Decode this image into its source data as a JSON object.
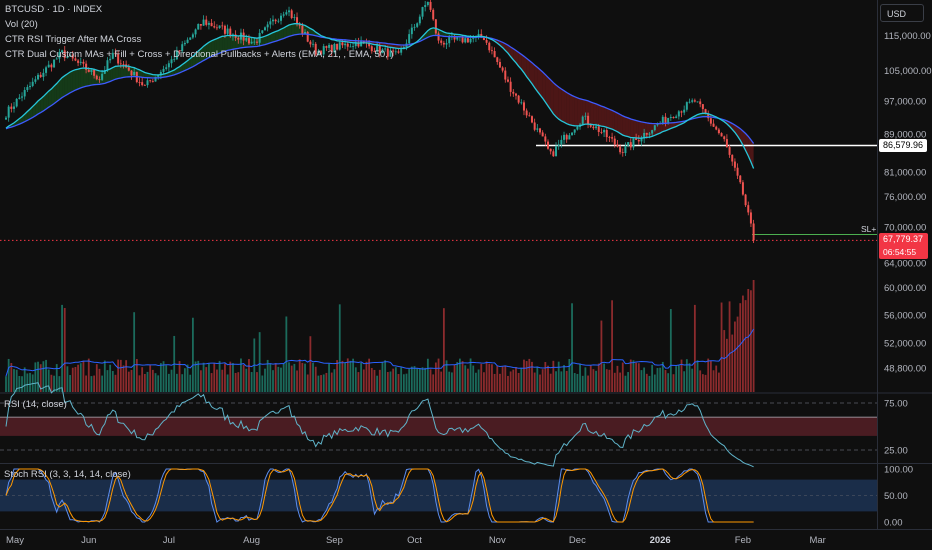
{
  "chart_data": {
    "type": "candlestick",
    "symbol_header": "BTCUSD · 1D · INDEX",
    "indicators": [
      "Vol (20)",
      "CTR RSI Trigger After MA Cross",
      "CTR Dual Custom MAs + Fill + Cross + Directional Pullbacks + Alerts (EMA, 21, , EMA, 50, )"
    ],
    "currency": "USD",
    "price_axis_ticks": [
      115000,
      105000,
      97000,
      89000,
      81000,
      76000,
      70000,
      64000,
      60000,
      56000,
      52000,
      48800
    ],
    "price_axis_labels": [
      "115,000.00",
      "105,000.00",
      "97,000.00",
      "89,000.00",
      "81,000.00",
      "76,000.00",
      "70,000.00",
      "64,000.00",
      "60,000.00",
      "56,000.00",
      "52,000.00",
      "48,800.00"
    ],
    "horizontal_level": {
      "value": 86579.96,
      "label": "86,579.96",
      "color": "#ffffff"
    },
    "last_price": {
      "value": 67779.37,
      "label": "67,779.37",
      "countdown": "06:54:55",
      "color": "#f23645"
    },
    "sl_label": "SL+",
    "time_axis_labels": [
      "May",
      "Jun",
      "Jul",
      "Aug",
      "Sep",
      "Oct",
      "Nov",
      "Dec",
      "2026",
      "Feb",
      "Mar"
    ],
    "close_anchors": [
      {
        "date": "2025-05-01",
        "close": 94000
      },
      {
        "date": "2025-05-22",
        "close": 110000
      },
      {
        "date": "2025-06-05",
        "close": 103000
      },
      {
        "date": "2025-06-10",
        "close": 109500
      },
      {
        "date": "2025-06-22",
        "close": 100800
      },
      {
        "date": "2025-07-01",
        "close": 107000
      },
      {
        "date": "2025-07-14",
        "close": 119000
      },
      {
        "date": "2025-08-02",
        "close": 113000
      },
      {
        "date": "2025-08-14",
        "close": 123000
      },
      {
        "date": "2025-08-25",
        "close": 110500
      },
      {
        "date": "2025-09-10",
        "close": 113000
      },
      {
        "date": "2025-09-25",
        "close": 109000
      },
      {
        "date": "2025-10-06",
        "close": 125000
      },
      {
        "date": "2025-10-10",
        "close": 113000
      },
      {
        "date": "2025-10-27",
        "close": 114500
      },
      {
        "date": "2025-11-05",
        "close": 101500
      },
      {
        "date": "2025-11-21",
        "close": 84500
      },
      {
        "date": "2025-12-03",
        "close": 93000
      },
      {
        "date": "2025-12-18",
        "close": 85500
      },
      {
        "date": "2026-01-05",
        "close": 93500
      },
      {
        "date": "2026-01-14",
        "close": 97000
      },
      {
        "date": "2026-01-25",
        "close": 87500
      },
      {
        "date": "2026-02-01",
        "close": 76500
      },
      {
        "date": "2026-02-05",
        "close": 67779.37
      }
    ],
    "moving_averages": [
      {
        "type": "EMA",
        "length": 21,
        "color": "#26c6da"
      },
      {
        "type": "EMA",
        "length": 50,
        "color": "#3d5afe"
      }
    ],
    "ma_fill": {
      "bullish_color": "#1b5e20",
      "bearish_color": "#7f1d1d"
    },
    "candle_colors": {
      "up": "#26a69a",
      "down": "#ef5350"
    },
    "rsi_pane": {
      "title": "RSI (14, close)",
      "axis_labels": [
        "75.00",
        "25.00"
      ],
      "overbought": 75,
      "oversold": 25,
      "band_upper": 60,
      "band_lower": 40,
      "band_color": "#4a1c22",
      "line_color": "#5fb3c9"
    },
    "stoch_pane": {
      "title": "Stoch RSI (3, 3, 14, 14, close)",
      "axis_labels": [
        "100.00",
        "50.00",
        "0.00"
      ],
      "band_color": "#1d3557",
      "k_color": "#5b8def",
      "d_color": "#ff9800"
    }
  }
}
